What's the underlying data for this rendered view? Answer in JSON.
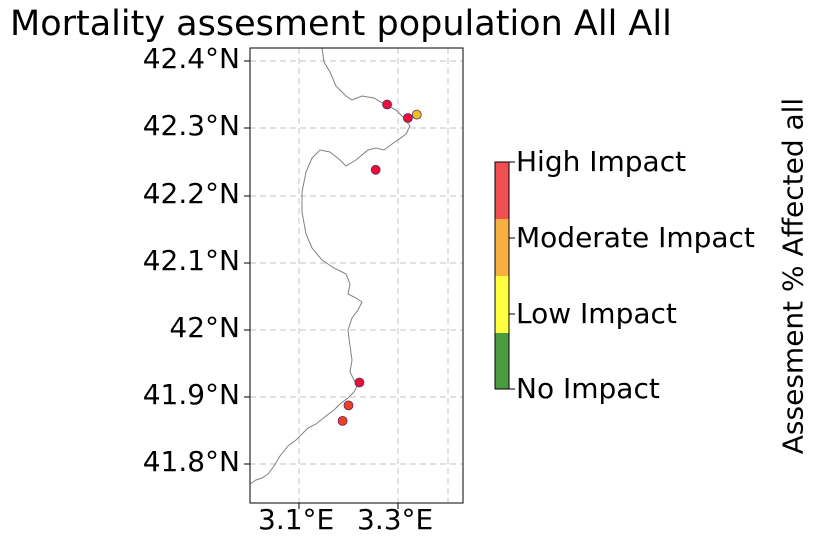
{
  "title": "Mortality assesment population All All",
  "map": {
    "y_ticks": [
      "42.4°N",
      "42.3°N",
      "42.2°N",
      "42.1°N",
      "42°N",
      "41.9°N",
      "41.8°N"
    ],
    "x_ticks": [
      "3.1°E",
      "3.3°E"
    ],
    "grid": "dashed",
    "coast_color": "#808080"
  },
  "colorbar": {
    "label": "Assesment % Affected all",
    "levels": [
      {
        "label": "High Impact",
        "color": "#f05050"
      },
      {
        "label": "Moderate Impact",
        "color": "#f7b040"
      },
      {
        "label": "Low Impact",
        "color": "#ffff40"
      },
      {
        "label": "No Impact",
        "color": "#4a9a40"
      }
    ]
  },
  "sites": [
    {
      "lon": 3.278,
      "lat": 42.335,
      "color": "#e8103a"
    },
    {
      "lon": 3.32,
      "lat": 42.315,
      "color": "#e8103a"
    },
    {
      "lon": 3.338,
      "lat": 42.32,
      "color": "#f0c020"
    },
    {
      "lon": 3.255,
      "lat": 42.238,
      "color": "#e8103a"
    },
    {
      "lon": 3.222,
      "lat": 41.922,
      "color": "#e8103a"
    },
    {
      "lon": 3.2,
      "lat": 41.888,
      "color": "#f04020"
    },
    {
      "lon": 3.188,
      "lat": 41.865,
      "color": "#f04020"
    }
  ]
}
